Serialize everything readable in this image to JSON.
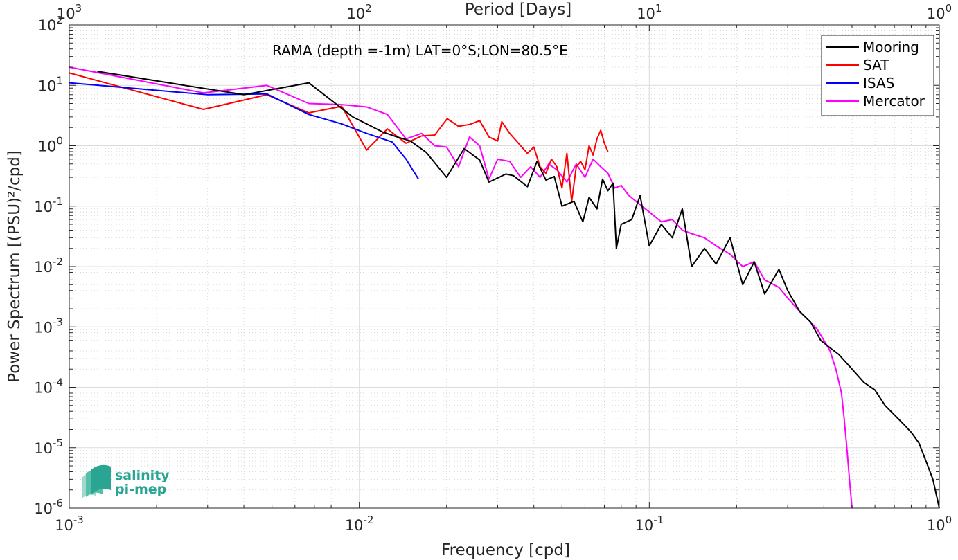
{
  "chart_data": {
    "type": "line",
    "title": "RAMA (depth =-1m) LAT=0°S;LON=80.5°E",
    "xlabel": "Frequency [cpd]",
    "ylabel": "Power Spectrum [(PSU)²/cpd]",
    "top_axis_label": "Period [Days]",
    "x_scale": "log",
    "y_scale": "log",
    "xlim": [
      0.001,
      1
    ],
    "ylim": [
      1e-06,
      100
    ],
    "x_ticks": [
      "10-3",
      "10-2",
      "10-1",
      "100"
    ],
    "top_ticks": [
      "103",
      "102",
      "101",
      "100"
    ],
    "y_ticks": [
      "10-6",
      "10-5",
      "10-4",
      "10-3",
      "10-2",
      "10-1",
      "100",
      "101",
      "102"
    ],
    "grid": true,
    "legend_position": "top-right",
    "series": [
      {
        "name": "Mooring",
        "color": "#000000",
        "points": [
          [
            0.00125,
            17
          ],
          [
            0.0025,
            10
          ],
          [
            0.004,
            7
          ],
          [
            0.005,
            8.5
          ],
          [
            0.0067,
            11
          ],
          [
            0.0095,
            3
          ],
          [
            0.012,
            1.7
          ],
          [
            0.0135,
            1.4
          ],
          [
            0.015,
            1.2
          ],
          [
            0.017,
            0.78
          ],
          [
            0.02,
            0.3
          ],
          [
            0.023,
            0.9
          ],
          [
            0.026,
            0.58
          ],
          [
            0.028,
            0.25
          ],
          [
            0.032,
            0.34
          ],
          [
            0.034,
            0.32
          ],
          [
            0.038,
            0.21
          ],
          [
            0.041,
            0.55
          ],
          [
            0.044,
            0.27
          ],
          [
            0.047,
            0.31
          ],
          [
            0.05,
            0.1
          ],
          [
            0.055,
            0.12
          ],
          [
            0.059,
            0.055
          ],
          [
            0.062,
            0.14
          ],
          [
            0.066,
            0.09
          ],
          [
            0.069,
            0.28
          ],
          [
            0.072,
            0.18
          ],
          [
            0.075,
            0.24
          ],
          [
            0.077,
            0.02
          ],
          [
            0.08,
            0.05
          ],
          [
            0.087,
            0.06
          ],
          [
            0.093,
            0.15
          ],
          [
            0.1,
            0.022
          ],
          [
            0.11,
            0.05
          ],
          [
            0.12,
            0.03
          ],
          [
            0.13,
            0.09
          ],
          [
            0.14,
            0.01
          ],
          [
            0.155,
            0.02
          ],
          [
            0.17,
            0.011
          ],
          [
            0.19,
            0.03
          ],
          [
            0.21,
            0.005
          ],
          [
            0.23,
            0.012
          ],
          [
            0.25,
            0.0035
          ],
          [
            0.28,
            0.009
          ],
          [
            0.3,
            0.004
          ],
          [
            0.33,
            0.0018
          ],
          [
            0.36,
            0.0012
          ],
          [
            0.39,
            0.0006
          ],
          [
            0.42,
            0.00045
          ],
          [
            0.45,
            0.00035
          ],
          [
            0.5,
            0.0002
          ],
          [
            0.55,
            0.00012
          ],
          [
            0.6,
            9e-05
          ],
          [
            0.65,
            5e-05
          ],
          [
            0.7,
            3.5e-05
          ],
          [
            0.75,
            2.5e-05
          ],
          [
            0.8,
            1.8e-05
          ],
          [
            0.85,
            1.2e-05
          ],
          [
            0.9,
            6e-06
          ],
          [
            0.95,
            3e-06
          ],
          [
            1.0,
            1e-06
          ]
        ]
      },
      {
        "name": "SAT",
        "color": "#ff0000",
        "points": [
          [
            0.001,
            16
          ],
          [
            0.0029,
            4
          ],
          [
            0.0048,
            7
          ],
          [
            0.0067,
            3.5
          ],
          [
            0.0087,
            4.5
          ],
          [
            0.0106,
            0.85
          ],
          [
            0.0125,
            1.9
          ],
          [
            0.0145,
            1.1
          ],
          [
            0.0164,
            1.45
          ],
          [
            0.0182,
            1.5
          ],
          [
            0.0201,
            2.8
          ],
          [
            0.022,
            2.1
          ],
          [
            0.024,
            2.25
          ],
          [
            0.026,
            2.6
          ],
          [
            0.028,
            1.4
          ],
          [
            0.03,
            1.2
          ],
          [
            0.031,
            2.5
          ],
          [
            0.033,
            1.6
          ],
          [
            0.036,
            1.0
          ],
          [
            0.038,
            0.75
          ],
          [
            0.04,
            0.95
          ],
          [
            0.042,
            0.45
          ],
          [
            0.044,
            0.35
          ],
          [
            0.046,
            0.6
          ],
          [
            0.048,
            0.45
          ],
          [
            0.05,
            0.2
          ],
          [
            0.052,
            0.75
          ],
          [
            0.054,
            0.12
          ],
          [
            0.056,
            0.45
          ],
          [
            0.058,
            0.55
          ],
          [
            0.06,
            0.4
          ],
          [
            0.062,
            1.0
          ],
          [
            0.064,
            0.7
          ],
          [
            0.066,
            1.3
          ],
          [
            0.068,
            1.8
          ],
          [
            0.07,
            1.1
          ],
          [
            0.072,
            0.8
          ]
        ]
      },
      {
        "name": "ISAS",
        "color": "#0000ff",
        "points": [
          [
            0.001,
            11
          ],
          [
            0.003,
            7
          ],
          [
            0.0048,
            7.2
          ],
          [
            0.0067,
            3.3
          ],
          [
            0.0087,
            2.3
          ],
          [
            0.0106,
            1.6
          ],
          [
            0.013,
            1.15
          ],
          [
            0.0145,
            0.6
          ],
          [
            0.016,
            0.28
          ]
        ]
      },
      {
        "name": "Mercator",
        "color": "#ff00ff",
        "points": [
          [
            0.001,
            20
          ],
          [
            0.0029,
            7.5
          ],
          [
            0.0048,
            10
          ],
          [
            0.0067,
            5
          ],
          [
            0.0087,
            4.8
          ],
          [
            0.0106,
            4.4
          ],
          [
            0.0125,
            3.3
          ],
          [
            0.0145,
            1.3
          ],
          [
            0.0164,
            1.6
          ],
          [
            0.0182,
            1.0
          ],
          [
            0.02,
            0.95
          ],
          [
            0.022,
            0.45
          ],
          [
            0.024,
            1.4
          ],
          [
            0.026,
            1.0
          ],
          [
            0.028,
            0.28
          ],
          [
            0.03,
            0.6
          ],
          [
            0.033,
            0.55
          ],
          [
            0.036,
            0.3
          ],
          [
            0.039,
            0.45
          ],
          [
            0.042,
            0.3
          ],
          [
            0.045,
            0.5
          ],
          [
            0.048,
            0.4
          ],
          [
            0.052,
            0.25
          ],
          [
            0.056,
            0.5
          ],
          [
            0.06,
            0.3
          ],
          [
            0.064,
            0.6
          ],
          [
            0.068,
            0.45
          ],
          [
            0.072,
            0.35
          ],
          [
            0.076,
            0.2
          ],
          [
            0.08,
            0.22
          ],
          [
            0.085,
            0.15
          ],
          [
            0.09,
            0.12
          ],
          [
            0.1,
            0.08
          ],
          [
            0.11,
            0.055
          ],
          [
            0.12,
            0.06
          ],
          [
            0.13,
            0.04
          ],
          [
            0.14,
            0.035
          ],
          [
            0.155,
            0.03
          ],
          [
            0.17,
            0.022
          ],
          [
            0.19,
            0.016
          ],
          [
            0.21,
            0.01
          ],
          [
            0.23,
            0.012
          ],
          [
            0.25,
            0.006
          ],
          [
            0.28,
            0.0045
          ],
          [
            0.3,
            0.003
          ],
          [
            0.33,
            0.0018
          ],
          [
            0.36,
            0.0012
          ],
          [
            0.38,
            0.0009
          ],
          [
            0.4,
            0.0006
          ],
          [
            0.42,
            0.0004
          ],
          [
            0.44,
            0.0002
          ],
          [
            0.46,
            8e-05
          ],
          [
            0.47,
            3e-05
          ],
          [
            0.48,
            1e-05
          ],
          [
            0.49,
            3e-06
          ],
          [
            0.5,
            1e-06
          ]
        ]
      }
    ]
  },
  "logo": {
    "line1": "salinity",
    "line2": "pi-mep",
    "color": "#2aa593"
  }
}
